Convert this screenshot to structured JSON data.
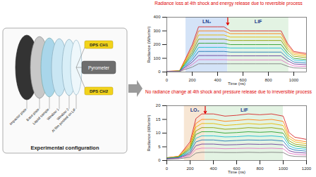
{
  "diagram": {
    "caption": "Experimental configuration",
    "components": [
      "Impactor plate",
      "Base plate",
      "Liquid sample",
      "Window 1",
      "Window 2",
      "Al film posited on LiF"
    ],
    "pyrometer": "Pyrometer",
    "probes": [
      "DPS CH1",
      "DPS CH2"
    ]
  },
  "chart_data": [
    {
      "type": "line",
      "title": "Radiance loss at 4th shock and energy release due to reversible process",
      "xlabel": "Time (ns)",
      "ylabel": "Radiance (W/sr/m²)",
      "xlim": [
        0,
        1100
      ],
      "xticks": [
        0,
        200,
        400,
        600,
        800,
        1000
      ],
      "ylim": [
        0,
        400
      ],
      "yticks": [
        0,
        100,
        200,
        300,
        400
      ],
      "regions": [
        {
          "label": "LN₂",
          "x1": 150,
          "x2": 480,
          "color": "#d4e3f7"
        },
        {
          "label": "LiF",
          "x1": 480,
          "x2": 960,
          "color": "#e3f3e3"
        }
      ],
      "x": [
        0,
        100,
        200,
        250,
        300,
        400,
        450,
        500,
        600,
        700,
        800,
        900,
        950,
        1000,
        1100
      ],
      "series": [
        {
          "color": "#d62728",
          "values": [
            5,
            8,
            198,
            330,
            330,
            330,
            330,
            300,
            300,
            300,
            300,
            300,
            210,
            150,
            135
          ]
        },
        {
          "color": "#ff7f0e",
          "values": [
            5,
            8,
            180,
            300,
            300,
            300,
            300,
            280,
            280,
            280,
            280,
            280,
            196,
            140,
            126
          ]
        },
        {
          "color": "#e6b800",
          "values": [
            4,
            7,
            162,
            270,
            270,
            270,
            270,
            255,
            255,
            255,
            255,
            255,
            178,
            128,
            115
          ]
        },
        {
          "color": "#8c9e00",
          "values": [
            4,
            7,
            144,
            240,
            240,
            240,
            240,
            230,
            230,
            230,
            230,
            230,
            161,
            115,
            104
          ]
        },
        {
          "color": "#2ca02c",
          "values": [
            4,
            6,
            126,
            210,
            210,
            210,
            210,
            200,
            200,
            200,
            200,
            200,
            140,
            100,
            90
          ]
        },
        {
          "color": "#17becf",
          "values": [
            3,
            6,
            108,
            180,
            180,
            180,
            180,
            175,
            175,
            175,
            175,
            175,
            122,
            88,
            79
          ]
        },
        {
          "color": "#1f77b4",
          "values": [
            3,
            5,
            90,
            150,
            150,
            150,
            150,
            145,
            145,
            145,
            145,
            145,
            102,
            73,
            65
          ]
        },
        {
          "color": "#6a3d9a",
          "values": [
            3,
            5,
            72,
            120,
            120,
            120,
            120,
            118,
            118,
            118,
            118,
            118,
            83,
            59,
            53
          ]
        },
        {
          "color": "#e377c2",
          "values": [
            2,
            4,
            54,
            90,
            90,
            90,
            90,
            88,
            88,
            88,
            88,
            88,
            62,
            44,
            40
          ]
        },
        {
          "color": "#7f7f7f",
          "values": [
            2,
            4,
            36,
            60,
            60,
            60,
            60,
            60,
            60,
            60,
            60,
            60,
            42,
            30,
            27
          ]
        }
      ]
    },
    {
      "type": "line",
      "title": "No radiance change at 4th shock and pressure release due to irreversible process",
      "xlabel": "Time (ns)",
      "ylabel": "Radiance (W/sr/m²)",
      "xlim": [
        0,
        1200
      ],
      "xticks": [
        0,
        200,
        400,
        600,
        800,
        1000,
        1200
      ],
      "ylim": [
        0,
        20
      ],
      "yticks": [
        0,
        5,
        10,
        15,
        20
      ],
      "regions": [
        {
          "label": "LO₂",
          "x1": 150,
          "x2": 330,
          "color": "#f7e6d4"
        },
        {
          "label": "LiF",
          "x1": 330,
          "x2": 1000,
          "color": "#e3f3e3"
        }
      ],
      "x": [
        0,
        100,
        200,
        250,
        300,
        400,
        500,
        600,
        700,
        800,
        900,
        1000,
        1050,
        1100,
        1200
      ],
      "series": [
        {
          "color": "#d62728",
          "values": [
            1,
            1.5,
            6.8,
            15.3,
            17,
            17,
            16.2,
            16.5,
            17,
            16.7,
            17,
            16.2,
            10.2,
            8.5,
            7.7
          ]
        },
        {
          "color": "#ff7f0e",
          "values": [
            1,
            1.5,
            6,
            13.5,
            15,
            15,
            14.3,
            14.6,
            15,
            14.7,
            15,
            14.3,
            9,
            7.5,
            6.8
          ]
        },
        {
          "color": "#e6b800",
          "values": [
            0.9,
            1.4,
            5.4,
            12.2,
            13.5,
            13.5,
            12.8,
            13.1,
            13.5,
            13.2,
            13.5,
            12.8,
            8.1,
            6.8,
            6.1
          ]
        },
        {
          "color": "#8c9e00",
          "values": [
            0.9,
            1.3,
            4.8,
            10.8,
            12,
            12,
            11.4,
            11.6,
            12,
            11.8,
            12,
            11.4,
            7.2,
            6,
            5.4
          ]
        },
        {
          "color": "#2ca02c",
          "values": [
            0.8,
            1.2,
            4.2,
            9.5,
            10.5,
            10.5,
            10,
            10.2,
            10.5,
            10.3,
            10.5,
            10,
            6.3,
            5.3,
            4.7
          ]
        },
        {
          "color": "#17becf",
          "values": [
            0.8,
            1.1,
            3.6,
            8.1,
            9,
            9,
            8.6,
            8.7,
            9,
            8.8,
            9,
            8.6,
            5.4,
            4.5,
            4.1
          ]
        },
        {
          "color": "#1f77b4",
          "values": [
            0.7,
            1,
            3,
            6.8,
            7.5,
            7.5,
            7.1,
            7.3,
            7.5,
            7.4,
            7.5,
            7.1,
            4.5,
            3.8,
            3.4
          ]
        },
        {
          "color": "#6a3d9a",
          "values": [
            0.6,
            0.9,
            2.4,
            5.4,
            6,
            6,
            5.7,
            5.8,
            6,
            5.9,
            6,
            5.7,
            3.6,
            3,
            2.7
          ]
        },
        {
          "color": "#e377c2",
          "values": [
            0.5,
            0.8,
            1.8,
            4.1,
            4.5,
            4.5,
            4.3,
            4.4,
            4.5,
            4.4,
            4.5,
            4.3,
            2.7,
            2.3,
            2
          ]
        },
        {
          "color": "#7f7f7f",
          "values": [
            0.4,
            0.6,
            1.2,
            2.7,
            3,
            3,
            2.9,
            2.9,
            3,
            2.9,
            3,
            2.9,
            1.8,
            1.5,
            1.4
          ]
        }
      ]
    }
  ]
}
